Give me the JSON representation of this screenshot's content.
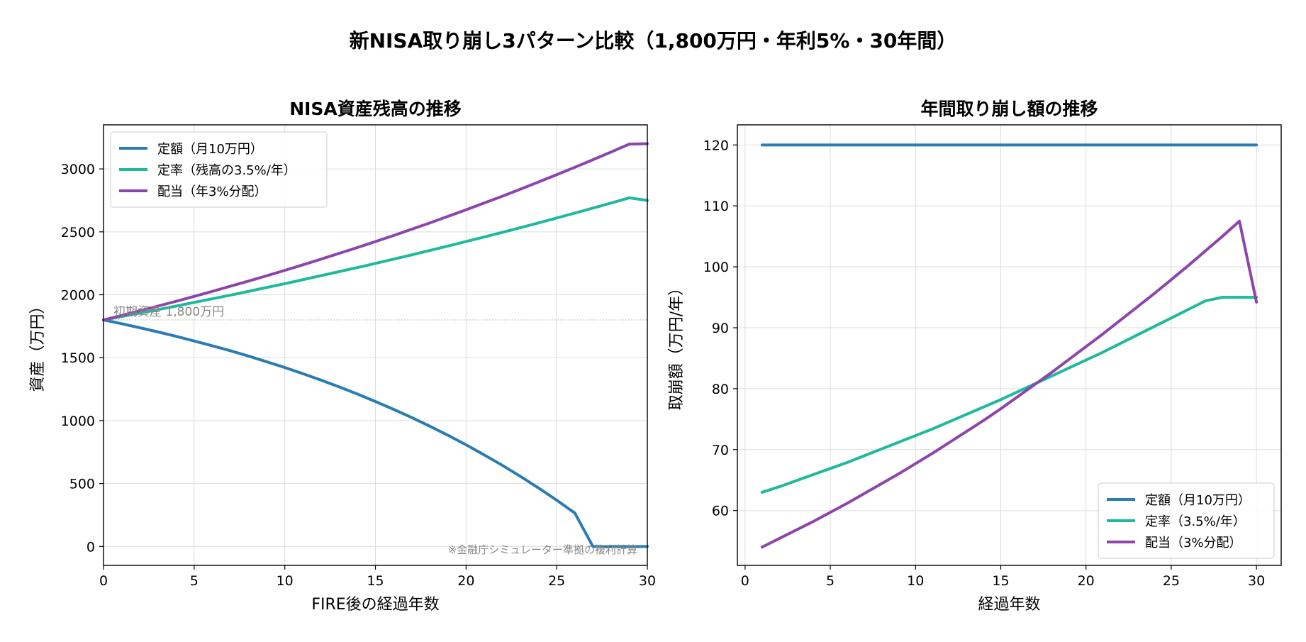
{
  "suptitle": "新NISA取り崩し3パターン比較（1,800万円・年利5%・30年間）",
  "colors": {
    "fixed": "#2b7bb4",
    "rate": "#1fb99c",
    "dividend": "#8e44ad",
    "grid": "#dddddd",
    "annotation": "#888888"
  },
  "chart_data": [
    {
      "type": "line",
      "title": "NISA資産残高の推移",
      "xlabel": "FIRE後の経過年数",
      "ylabel": "資産（万円）",
      "xlim": [
        0,
        30
      ],
      "ylim": [
        -150,
        3350
      ],
      "xticks": [
        0,
        5,
        10,
        15,
        20,
        25,
        30
      ],
      "yticks": [
        0,
        500,
        1000,
        1500,
        2000,
        2500,
        3000
      ],
      "grid": true,
      "legend": "top-left",
      "x": [
        0,
        1,
        2,
        3,
        4,
        5,
        6,
        7,
        8,
        9,
        10,
        11,
        12,
        13,
        14,
        15,
        16,
        17,
        18,
        19,
        20,
        21,
        22,
        23,
        24,
        25,
        26,
        27,
        28,
        29,
        30
      ],
      "series": [
        {
          "name": "定額（月10万円）",
          "color_key": "fixed",
          "values": [
            1800,
            1770,
            1738,
            1705,
            1670,
            1633,
            1595,
            1555,
            1513,
            1468,
            1422,
            1373,
            1322,
            1268,
            1212,
            1152,
            1090,
            1025,
            956,
            884,
            808,
            728,
            645,
            557,
            465,
            368,
            266,
            0,
            0,
            0,
            0
          ]
        },
        {
          "name": "定率（残高の3.5%/年）",
          "color_key": "rate",
          "values": [
            1800,
            1827,
            1854,
            1882,
            1910,
            1939,
            1968,
            1997,
            2027,
            2058,
            2088,
            2120,
            2152,
            2184,
            2216,
            2249,
            2283,
            2317,
            2352,
            2387,
            2423,
            2459,
            2496,
            2533,
            2571,
            2610,
            2649,
            2689,
            2729,
            2770,
            2750
          ]
        },
        {
          "name": "配当（年3%分配）",
          "color_key": "dividend",
          "values": [
            1800,
            1836,
            1873,
            1910,
            1948,
            1987,
            2027,
            2068,
            2109,
            2151,
            2194,
            2238,
            2283,
            2329,
            2375,
            2423,
            2471,
            2521,
            2571,
            2623,
            2675,
            2729,
            2783,
            2839,
            2896,
            2954,
            3013,
            3073,
            3134,
            3197,
            3200
          ]
        }
      ],
      "hline": {
        "y": 1800,
        "label": "初期資産 1,800万円"
      },
      "annotation": "※金融庁シミュレーター準拠の複利計算"
    },
    {
      "type": "line",
      "title": "年間取り崩し額の推移",
      "xlabel": "経過年数",
      "ylabel": "取崩額（万円/年）",
      "xlim": [
        -0.45,
        31.45
      ],
      "ylim": [
        51,
        123.3
      ],
      "xticks": [
        0,
        5,
        10,
        15,
        20,
        25,
        30
      ],
      "yticks": [
        60,
        70,
        80,
        90,
        100,
        110,
        120
      ],
      "grid": true,
      "legend": "bottom-right",
      "x": [
        1,
        2,
        3,
        4,
        5,
        6,
        7,
        8,
        9,
        10,
        11,
        12,
        13,
        14,
        15,
        16,
        17,
        18,
        19,
        20,
        21,
        22,
        23,
        24,
        25,
        26,
        27,
        28,
        29,
        30
      ],
      "series": [
        {
          "name": "定額（月10万円）",
          "color_key": "fixed",
          "values": [
            120,
            120,
            120,
            120,
            120,
            120,
            120,
            120,
            120,
            120,
            120,
            120,
            120,
            120,
            120,
            120,
            120,
            120,
            120,
            120,
            120,
            120,
            120,
            120,
            120,
            120,
            120,
            120,
            120,
            120
          ]
        },
        {
          "name": "定率（3.5%/年）",
          "color_key": "rate",
          "values": [
            63.0,
            63.9,
            64.9,
            65.9,
            66.9,
            67.9,
            69.0,
            70.1,
            71.2,
            72.3,
            73.4,
            74.6,
            75.8,
            77.0,
            78.2,
            79.5,
            80.8,
            82.1,
            83.4,
            84.7,
            86.0,
            87.4,
            88.8,
            90.2,
            91.6,
            93.0,
            94.4,
            95.0,
            95.0,
            95.0
          ]
        },
        {
          "name": "配当（3%分配）",
          "color_key": "dividend",
          "values": [
            54.0,
            55.4,
            56.8,
            58.2,
            59.7,
            61.2,
            62.8,
            64.4,
            66.0,
            67.7,
            69.4,
            71.2,
            73.0,
            74.8,
            76.7,
            78.7,
            80.7,
            82.7,
            84.8,
            86.9,
            89.0,
            91.2,
            93.4,
            95.6,
            97.9,
            100.2,
            102.6,
            105.0,
            107.5,
            94.2
          ]
        }
      ]
    }
  ]
}
